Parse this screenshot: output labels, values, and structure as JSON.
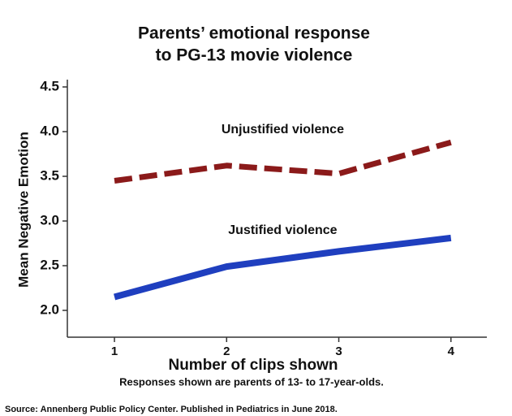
{
  "chart_data": {
    "type": "line",
    "title": [
      "Parents’ emotional response",
      "to PG-13 movie violence"
    ],
    "x_label": "Number of clips shown",
    "y_label": "Mean Negative Emotion",
    "note": "Responses shown are parents of 13- to 17-year-olds.",
    "source": "Source: Annenberg Public Policy Center. Published in Pediatrics in June 2018.",
    "x": [
      1,
      2,
      3,
      4
    ],
    "xlim": [
      0.58,
      4.32
    ],
    "xticks": [
      1,
      2,
      3,
      4
    ],
    "ylim": [
      1.7,
      4.55
    ],
    "yticks": [
      {
        "value": 2,
        "label": "2.0"
      },
      2.5,
      {
        "value": 3,
        "label": "3.0"
      },
      3.5,
      {
        "value": 4,
        "label": "4.0"
      },
      4.5
    ],
    "series": [
      {
        "name": "Unjustified violence",
        "color": "#8b1a1a",
        "dashed": true,
        "values": [
          3.45,
          3.62,
          3.53,
          3.88
        ]
      },
      {
        "name": "Justified violence",
        "color": "#1f3fbf",
        "dashed": false,
        "values": [
          2.15,
          2.49,
          2.66,
          2.81
        ]
      }
    ]
  }
}
